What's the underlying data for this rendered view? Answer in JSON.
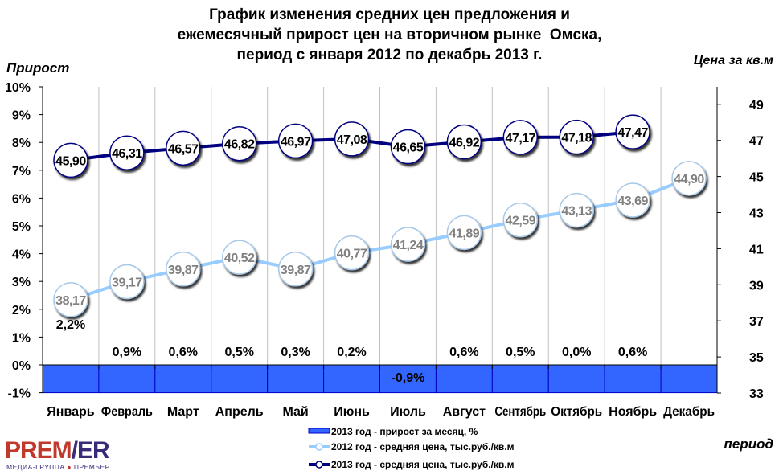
{
  "chart_data": {
    "type": "bar+line",
    "title": [
      "График изменения средних цен предложения и",
      "ежемесячный прирост цен на вторичном рынке  Омска,",
      "период с января 2012 по декабрь 2013 г."
    ],
    "ylabel_left": "Прирост",
    "ylabel_right": "Цена за кв.м",
    "xlabel": "период",
    "categories": [
      "Январь",
      "Февраль",
      "Март",
      "Апрель",
      "Май",
      "Июнь",
      "Июль",
      "Август",
      "Сентябрь",
      "Октябрь",
      "Ноябрь",
      "Декабрь"
    ],
    "ylim_left": [
      -1,
      10
    ],
    "yticks_left": [
      "-1%",
      "0%",
      "1%",
      "2%",
      "3%",
      "4%",
      "5%",
      "6%",
      "7%",
      "8%",
      "9%",
      "10%"
    ],
    "ylim_right": [
      33,
      50
    ],
    "yticks_right": [
      "33",
      "35",
      "37",
      "39",
      "41",
      "43",
      "45",
      "47",
      "49"
    ],
    "grid": "vertical category separators",
    "legend_position": "bottom",
    "series": [
      {
        "name": "2013 год - прирост за месяц, %",
        "type": "bar",
        "axis": "left",
        "color": "#3366ff",
        "values": [
          2.2,
          0.9,
          0.6,
          0.5,
          0.3,
          0.2,
          -0.9,
          0.6,
          0.5,
          0.0,
          0.6,
          -1.0
        ],
        "labels": [
          "2,2%",
          "0,9%",
          "0,6%",
          "0,5%",
          "0,3%",
          "0,2%",
          "-0,9%",
          "0,6%",
          "0,5%",
          "0,0%",
          "0,6%",
          ""
        ]
      },
      {
        "name": "2012 год - средняя цена, тыс.руб./кв.м",
        "type": "line",
        "axis": "right",
        "color": "#99ccff",
        "values": [
          38.17,
          39.17,
          39.87,
          40.52,
          39.87,
          40.77,
          41.24,
          41.89,
          42.59,
          43.13,
          43.69,
          44.9
        ],
        "labels": [
          "38,17",
          "39,17",
          "39,87",
          "40,52",
          "39,87",
          "40,77",
          "41,24",
          "41,89",
          "42,59",
          "43,13",
          "43,69",
          "44,90"
        ]
      },
      {
        "name": "2013 год - средняя цена, тыс.руб./кв.м",
        "type": "line",
        "axis": "right",
        "color": "#000080",
        "values": [
          45.9,
          46.31,
          46.57,
          46.82,
          46.97,
          47.08,
          46.65,
          46.92,
          47.17,
          47.18,
          47.47,
          null
        ],
        "labels": [
          "45,90",
          "46,31",
          "46,57",
          "46,82",
          "46,97",
          "47,08",
          "46,65",
          "46,92",
          "47,17",
          "47,18",
          "47,47",
          ""
        ]
      }
    ]
  },
  "logo": {
    "main": "PREM!ER",
    "sub": "МЕДИА-ГРУППА ПРЕМЬЕР"
  }
}
